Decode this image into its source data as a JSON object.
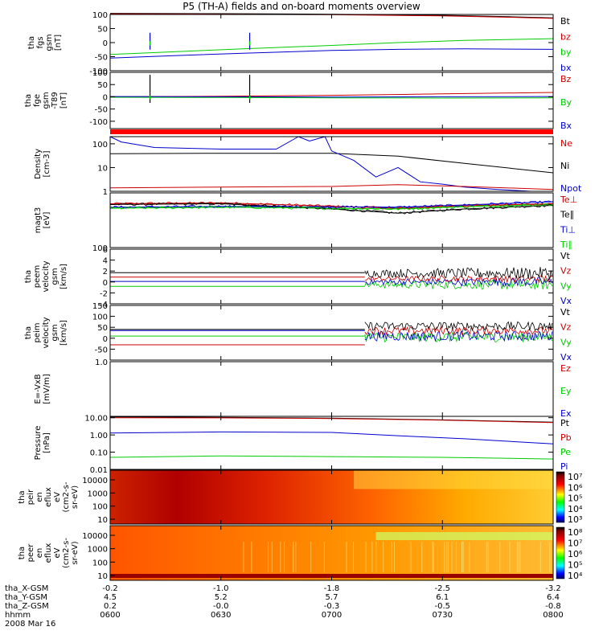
{
  "title": "P5 (TH-A) fields and on-board moments overview",
  "colors": {
    "black": "#000000",
    "red": "#cc0000",
    "green": "#00cc00",
    "blue": "#0000cc",
    "brightred": "#ff0000",
    "darkred": "#990000"
  },
  "chart_data": {
    "type": "line",
    "time_ticks": [
      "0600",
      "0630",
      "0700",
      "0730",
      "0800"
    ],
    "time_range_hours": [
      6.0,
      8.0
    ],
    "panels": [
      {
        "id": "fgs",
        "ylabel": [
          "tha",
          "fgs",
          "gsm",
          "[nT]"
        ],
        "ylim": [
          -100,
          100
        ],
        "yticks": [
          "100",
          "50",
          "0",
          "-50",
          "-100"
        ],
        "ytick_values": [
          100,
          50,
          0,
          -50,
          -100
        ],
        "legend": [
          {
            "name": "Bt",
            "color": "#000000"
          },
          {
            "name": "bz",
            "color": "#cc0000"
          },
          {
            "name": "by",
            "color": "#00cc00"
          },
          {
            "name": "bx",
            "color": "#0000cc"
          }
        ],
        "series": [
          {
            "name": "Bt",
            "color": "#000000",
            "x": [
              6.0,
              6.5,
              7.0,
              7.5,
              7.8,
              8.0
            ],
            "y": [
              104,
              103,
              101,
              97,
              92,
              88
            ]
          },
          {
            "name": "bz",
            "color": "#cc0000",
            "x": [
              6.0,
              6.5,
              7.0,
              7.5,
              7.8,
              8.0
            ],
            "y": [
              102,
              101,
              99,
              95,
              90,
              86
            ]
          },
          {
            "name": "by",
            "color": "#00cc00",
            "x": [
              6.0,
              6.3,
              6.6,
              7.0,
              7.3,
              7.6,
              8.0
            ],
            "y": [
              -42,
              -32,
              -22,
              -10,
              0,
              8,
              14
            ]
          },
          {
            "name": "bx",
            "color": "#0000cc",
            "x": [
              6.0,
              6.3,
              6.6,
              7.0,
              7.3,
              7.6,
              8.0
            ],
            "y": [
              -55,
              -46,
              -38,
              -28,
              -24,
              -22,
              -24
            ]
          }
        ]
      },
      {
        "id": "fge",
        "ylabel": [
          "tha",
          "fge",
          "gsm",
          "-T89",
          "[nT]"
        ],
        "ylim": [
          -130,
          100
        ],
        "yticks": [
          "100",
          "50",
          "0",
          "-50",
          "-100"
        ],
        "ytick_values": [
          100,
          50,
          0,
          -50,
          -100
        ],
        "legend": [
          {
            "name": "Bz",
            "color": "#cc0000"
          },
          {
            "name": "By",
            "color": "#00cc00"
          },
          {
            "name": "Bx",
            "color": "#0000cc"
          }
        ],
        "series": [
          {
            "name": "Bz",
            "color": "#cc0000",
            "x": [
              6.0,
              6.5,
              7.0,
              7.5,
              8.0
            ],
            "y": [
              0,
              2,
              6,
              12,
              18
            ]
          },
          {
            "name": "By",
            "color": "#00cc00",
            "x": [
              6.0,
              6.5,
              7.0,
              7.5,
              8.0
            ],
            "y": [
              -2,
              -3,
              -4,
              -5,
              -4
            ]
          },
          {
            "name": "Bx",
            "color": "#0000cc",
            "x": [
              6.0,
              6.5,
              7.0,
              7.5,
              8.0
            ],
            "y": [
              1,
              0,
              -1,
              0,
              1
            ]
          }
        ]
      },
      {
        "id": "density",
        "ylabel": [
          "Density",
          "[cm-3]"
        ],
        "scale": "log",
        "ylim": [
          1,
          200
        ],
        "yticks": [
          "100",
          "10",
          "1"
        ],
        "ytick_values": [
          100,
          10,
          1
        ],
        "legend": [
          {
            "name": "Ne",
            "color": "#cc0000"
          },
          {
            "name": "Ni",
            "color": "#000000"
          },
          {
            "name": "Npot",
            "color": "#0000cc"
          }
        ],
        "series": [
          {
            "name": "Ni",
            "color": "#000000",
            "x": [
              6.0,
              6.5,
              7.0,
              7.3,
              7.6,
              8.0
            ],
            "y": [
              38,
              40,
              40,
              30,
              15,
              6
            ]
          },
          {
            "name": "Npot",
            "color": "#0000cc",
            "x": [
              6.0,
              6.05,
              6.2,
              6.5,
              6.75,
              6.85,
              6.9,
              6.97,
              7.0,
              7.1,
              7.2,
              7.3,
              7.4,
              7.5,
              7.6,
              7.75,
              7.9,
              8.0
            ],
            "y": [
              200,
              120,
              70,
              60,
              60,
              200,
              130,
              200,
              50,
              20,
              4,
              10,
              2.5,
              2.0,
              1.5,
              1.2,
              1.0,
              1.0
            ]
          },
          {
            "name": "Ne",
            "color": "#cc0000",
            "x": [
              6.0,
              6.5,
              7.0,
              7.3,
              7.6,
              8.0
            ],
            "y": [
              1.4,
              1.5,
              1.6,
              1.9,
              1.6,
              1.2
            ]
          }
        ]
      },
      {
        "id": "temperature",
        "ylabel": [
          "magt3",
          "[eV]"
        ],
        "scale": "log",
        "ylim": [
          100,
          20000
        ],
        "yticks": [
          "100"
        ],
        "ytick_values": [
          100
        ],
        "legend": [
          {
            "name": "Te⊥",
            "color": "#cc0000"
          },
          {
            "name": "Te∥",
            "color": "#000000"
          },
          {
            "name": "Ti⊥",
            "color": "#0000cc"
          },
          {
            "name": "Ti∥",
            "color": "#00cc00"
          }
        ],
        "series": [
          {
            "name": "Te⊥",
            "color": "#cc0000",
            "x": [
              6.0,
              6.5,
              7.0,
              7.3,
              7.6,
              8.0
            ],
            "y": [
              7000,
              7600,
              5500,
              4500,
              5800,
              7000
            ]
          },
          {
            "name": "Te∥",
            "color": "#000000",
            "x": [
              6.0,
              6.5,
              7.0,
              7.3,
              7.6,
              8.0
            ],
            "y": [
              6500,
              7000,
              4200,
              2800,
              4200,
              6000
            ]
          },
          {
            "name": "Ti⊥",
            "color": "#0000cc",
            "x": [
              6.0,
              6.5,
              7.0,
              7.3,
              7.6,
              8.0
            ],
            "y": [
              5000,
              5400,
              5200,
              5000,
              6200,
              8500
            ]
          },
          {
            "name": "Ti∥",
            "color": "#00cc00",
            "x": [
              6.0,
              6.5,
              7.0,
              7.3,
              7.6,
              8.0
            ],
            "y": [
              4500,
              5000,
              4500,
              4200,
              5200,
              6500
            ]
          }
        ]
      },
      {
        "id": "velocity_e",
        "ylabel": [
          "tha",
          "peem",
          "velocity",
          "gsm",
          "[km/s]"
        ],
        "ylim": [
          -4,
          6
        ],
        "yticks": [
          "6",
          "4",
          "2",
          "0",
          "-2",
          "-4"
        ],
        "ytick_values": [
          6,
          4,
          2,
          0,
          -2,
          -4
        ],
        "legend": [
          {
            "name": "Vt",
            "color": "#000000"
          },
          {
            "name": "Vz",
            "color": "#cc0000"
          },
          {
            "name": "Vy",
            "color": "#00cc00"
          },
          {
            "name": "Vx",
            "color": "#0000cc"
          }
        ],
        "series": [
          {
            "name": "Vt",
            "color": "#000000",
            "x": [
              6.0,
              7.15
            ],
            "y": [
              1.7,
              1.7
            ]
          },
          {
            "name": "Vz",
            "color": "#cc0000",
            "x": [
              6.0,
              7.15
            ],
            "y": [
              0.9,
              0.9
            ]
          },
          {
            "name": "Vy",
            "color": "#00cc00",
            "x": [
              6.0,
              7.15
            ],
            "y": [
              -0.8,
              -0.8
            ]
          },
          {
            "name": "Vx",
            "color": "#0000cc",
            "x": [
              6.0,
              7.15
            ],
            "y": [
              0.1,
              0.1
            ]
          }
        ]
      },
      {
        "id": "velocity_i",
        "ylabel": [
          "tha",
          "peim",
          "velocity",
          "gsm",
          "[km/s]"
        ],
        "ylim": [
          -100,
          150
        ],
        "yticks": [
          "150",
          "100",
          "50",
          "0",
          "-50"
        ],
        "ytick_values": [
          150,
          100,
          50,
          0,
          -50
        ],
        "legend": [
          {
            "name": "Vt",
            "color": "#000000"
          },
          {
            "name": "Vz",
            "color": "#cc0000"
          },
          {
            "name": "Vy",
            "color": "#00cc00"
          },
          {
            "name": "Vx",
            "color": "#0000cc"
          }
        ],
        "series": [
          {
            "name": "Vt",
            "color": "#000000",
            "x": [
              6.0,
              7.15
            ],
            "y": [
              40,
              40
            ]
          },
          {
            "name": "Vz",
            "color": "#cc0000",
            "x": [
              6.0,
              7.15
            ],
            "y": [
              -30,
              -30
            ]
          },
          {
            "name": "Vy",
            "color": "#00cc00",
            "x": [
              6.0,
              7.15
            ],
            "y": [
              10,
              10
            ]
          },
          {
            "name": "Vx",
            "color": "#0000cc",
            "x": [
              6.0,
              7.15
            ],
            "y": [
              35,
              35
            ]
          }
        ]
      },
      {
        "id": "efield",
        "ylabel": [
          "E=-VxB",
          "[mV/m]"
        ],
        "ylim": [
          -1,
          1
        ],
        "yticks": [
          "1.0"
        ],
        "ytick_values": [
          1
        ],
        "legend": [
          {
            "name": "Ez",
            "color": "#cc0000"
          },
          {
            "name": "Ey",
            "color": "#00cc00"
          },
          {
            "name": "Ex",
            "color": "#0000cc"
          }
        ],
        "series": []
      },
      {
        "id": "pressure",
        "ylabel": [
          "Pressure",
          "[nPa]"
        ],
        "scale": "log",
        "ylim": [
          0.01,
          12
        ],
        "yticks": [
          "10.00",
          "1.00",
          "0.10",
          "0.01"
        ],
        "ytick_values": [
          10,
          1,
          0.1,
          0.01
        ],
        "legend": [
          {
            "name": "Pt",
            "color": "#000000"
          },
          {
            "name": "Pb",
            "color": "#cc0000"
          },
          {
            "name": "Pe",
            "color": "#00cc00"
          },
          {
            "name": "Pi",
            "color": "#0000cc"
          }
        ],
        "series": [
          {
            "name": "Pt",
            "color": "#000000",
            "x": [
              6.0,
              6.5,
              7.0,
              7.5,
              8.0
            ],
            "y": [
              11,
              10.5,
              9.5,
              7.5,
              5.5
            ]
          },
          {
            "name": "Pb",
            "color": "#cc0000",
            "x": [
              6.0,
              6.5,
              7.0,
              7.5,
              8.0
            ],
            "y": [
              10,
              9.8,
              9.0,
              7.2,
              5.2
            ]
          },
          {
            "name": "Pi",
            "color": "#0000cc",
            "x": [
              6.0,
              6.5,
              7.0,
              7.3,
              7.6,
              8.0
            ],
            "y": [
              1.3,
              1.5,
              1.4,
              0.9,
              0.6,
              0.3
            ]
          },
          {
            "name": "Pe",
            "color": "#00cc00",
            "x": [
              6.0,
              6.5,
              7.0,
              7.5,
              8.0
            ],
            "y": [
              0.05,
              0.06,
              0.055,
              0.05,
              0.04
            ]
          }
        ]
      },
      {
        "id": "peir",
        "type": "heatmap",
        "ylabel": [
          "tha",
          "peir",
          "en",
          "eflux",
          "eV",
          "(cm2-s-",
          "sr-eV)"
        ],
        "yticks": [
          "10000",
          "1000",
          "100",
          "10"
        ],
        "colorbar_ticks": [
          "10⁷",
          "10⁶",
          "10⁵",
          "10⁴",
          "10³"
        ]
      },
      {
        "id": "peer",
        "type": "heatmap",
        "ylabel": [
          "tha",
          "peer",
          "en",
          "eflux",
          "eV",
          "(cm2-s-",
          "sr-eV)"
        ],
        "yticks": [
          "10000",
          "1000",
          "100",
          "10"
        ],
        "colorbar_ticks": [
          "10⁸",
          "10⁷",
          "10⁶",
          "10⁵",
          "10⁴"
        ]
      }
    ],
    "ephemeris": {
      "rows": [
        {
          "label": "tha_X-GSM",
          "values": [
            "-0.2",
            "-1.0",
            "-1.8",
            "-2.5",
            "-3.2"
          ]
        },
        {
          "label": "tha_Y-GSM",
          "values": [
            "4.5",
            "5.2",
            "5.7",
            "6.1",
            "6.4"
          ]
        },
        {
          "label": "tha_Z-GSM",
          "values": [
            "0.2",
            "-0.0",
            "-0.3",
            "-0.5",
            "-0.8"
          ]
        },
        {
          "label": "hhmm",
          "values": [
            "0600",
            "0630",
            "0700",
            "0730",
            "0800"
          ]
        }
      ],
      "date": "2008 Mar 16"
    }
  }
}
